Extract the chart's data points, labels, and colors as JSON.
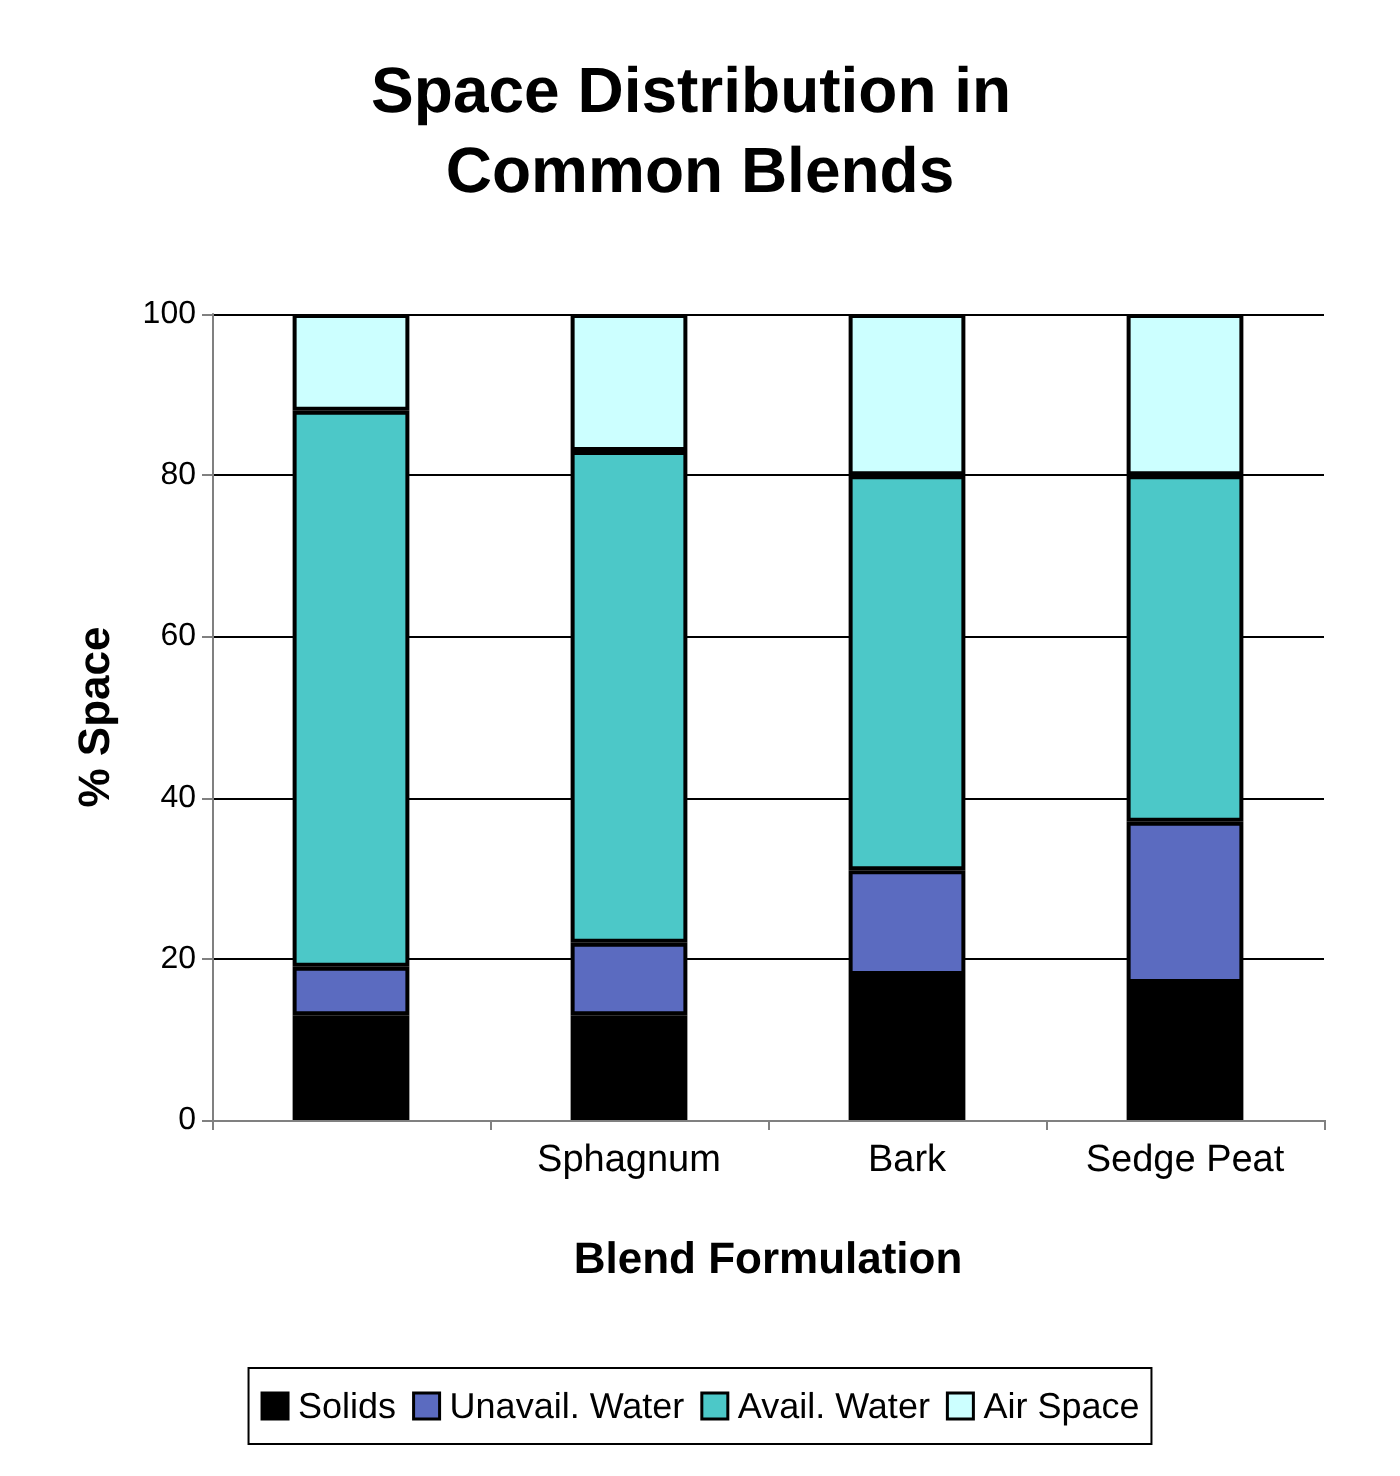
{
  "chart_data": {
    "type": "bar",
    "title": "Space Distribution in Common Blends",
    "xlabel": "Blend Formulation",
    "ylabel": "% Space",
    "categories": [
      null,
      "Sphagnum",
      "Bark",
      "Sedge Peat"
    ],
    "stacked": true,
    "series": [
      {
        "name": "Solids",
        "color": "#000000",
        "values": [
          13,
          13,
          18,
          17
        ]
      },
      {
        "name": "Unavail. Water",
        "color": "#5b6bc0",
        "values": [
          6,
          9,
          13,
          20
        ]
      },
      {
        "name": "Avail. Water",
        "color": "#4cc8c8",
        "values": [
          69,
          61,
          49,
          43
        ]
      },
      {
        "name": "Air Space",
        "color": "#ccffff",
        "values": [
          12,
          17,
          20,
          20
        ]
      }
    ],
    "ylim": [
      0,
      100
    ],
    "yticks": [
      0,
      20,
      40,
      60,
      80,
      100
    ],
    "grid": "y",
    "legend": "bottom"
  }
}
